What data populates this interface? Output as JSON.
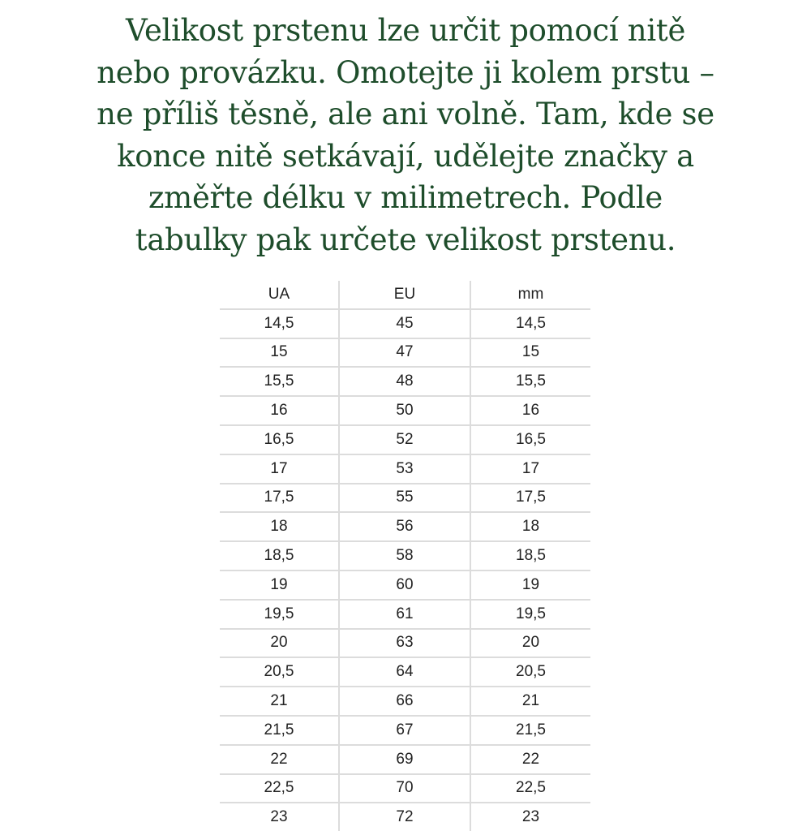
{
  "intro_lines": [
    "Velikost prstenu lze určit pomocí nitě",
    "nebo provázku. Omotejte ji kolem prstu –",
    "ne příliš těsně, ale ani volně. Tam, kde se",
    "konce nitě setkávají, udělejte značky a",
    "změřte délku v milimetrech. Podle",
    "tabulky pak určete velikost prstenu."
  ],
  "table": {
    "headers": [
      "UA",
      "EU",
      "mm"
    ],
    "rows": [
      [
        "14,5",
        "45",
        "14,5"
      ],
      [
        "15",
        "47",
        "15"
      ],
      [
        "15,5",
        "48",
        "15,5"
      ],
      [
        "16",
        "50",
        "16"
      ],
      [
        "16,5",
        "52",
        "16,5"
      ],
      [
        "17",
        "53",
        "17"
      ],
      [
        "17,5",
        "55",
        "17,5"
      ],
      [
        "18",
        "56",
        "18"
      ],
      [
        "18,5",
        "58",
        "18,5"
      ],
      [
        "19",
        "60",
        "19"
      ],
      [
        "19,5",
        "61",
        "19,5"
      ],
      [
        "20",
        "63",
        "20"
      ],
      [
        "20,5",
        "64",
        "20,5"
      ],
      [
        "21",
        "66",
        "21"
      ],
      [
        "21,5",
        "67",
        "21,5"
      ],
      [
        "22",
        "69",
        "22"
      ],
      [
        "22,5",
        "70",
        "22,5"
      ],
      [
        "23",
        "72",
        "23"
      ]
    ]
  },
  "colors": {
    "text_green": "#1e4d2b"
  }
}
